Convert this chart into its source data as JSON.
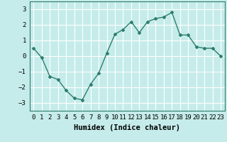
{
  "x": [
    0,
    1,
    2,
    3,
    4,
    5,
    6,
    7,
    8,
    9,
    10,
    11,
    12,
    13,
    14,
    15,
    16,
    17,
    18,
    19,
    20,
    21,
    22,
    23
  ],
  "y": [
    0.5,
    -0.1,
    -1.3,
    -1.5,
    -2.2,
    -2.7,
    -2.8,
    -1.8,
    -1.1,
    0.2,
    1.4,
    1.7,
    2.2,
    1.5,
    2.2,
    2.4,
    2.5,
    2.8,
    1.35,
    1.35,
    0.6,
    0.5,
    0.5,
    0.0
  ],
  "line_color": "#2e7d6e",
  "marker": "D",
  "marker_size": 2.0,
  "line_width": 1.0,
  "xlabel": "Humidex (Indice chaleur)",
  "xlim": [
    -0.5,
    23.5
  ],
  "ylim": [
    -3.5,
    3.5
  ],
  "yticks": [
    -3,
    -2,
    -1,
    0,
    1,
    2,
    3
  ],
  "xtick_labels": [
    "0",
    "1",
    "2",
    "3",
    "4",
    "5",
    "6",
    "7",
    "8",
    "9",
    "10",
    "11",
    "12",
    "13",
    "14",
    "15",
    "16",
    "17",
    "18",
    "19",
    "20",
    "21",
    "22",
    "23"
  ],
  "bg_color": "#c5ecea",
  "grid_color": "#ffffff",
  "tick_fontsize": 6.5,
  "xlabel_fontsize": 7.5,
  "title": ""
}
